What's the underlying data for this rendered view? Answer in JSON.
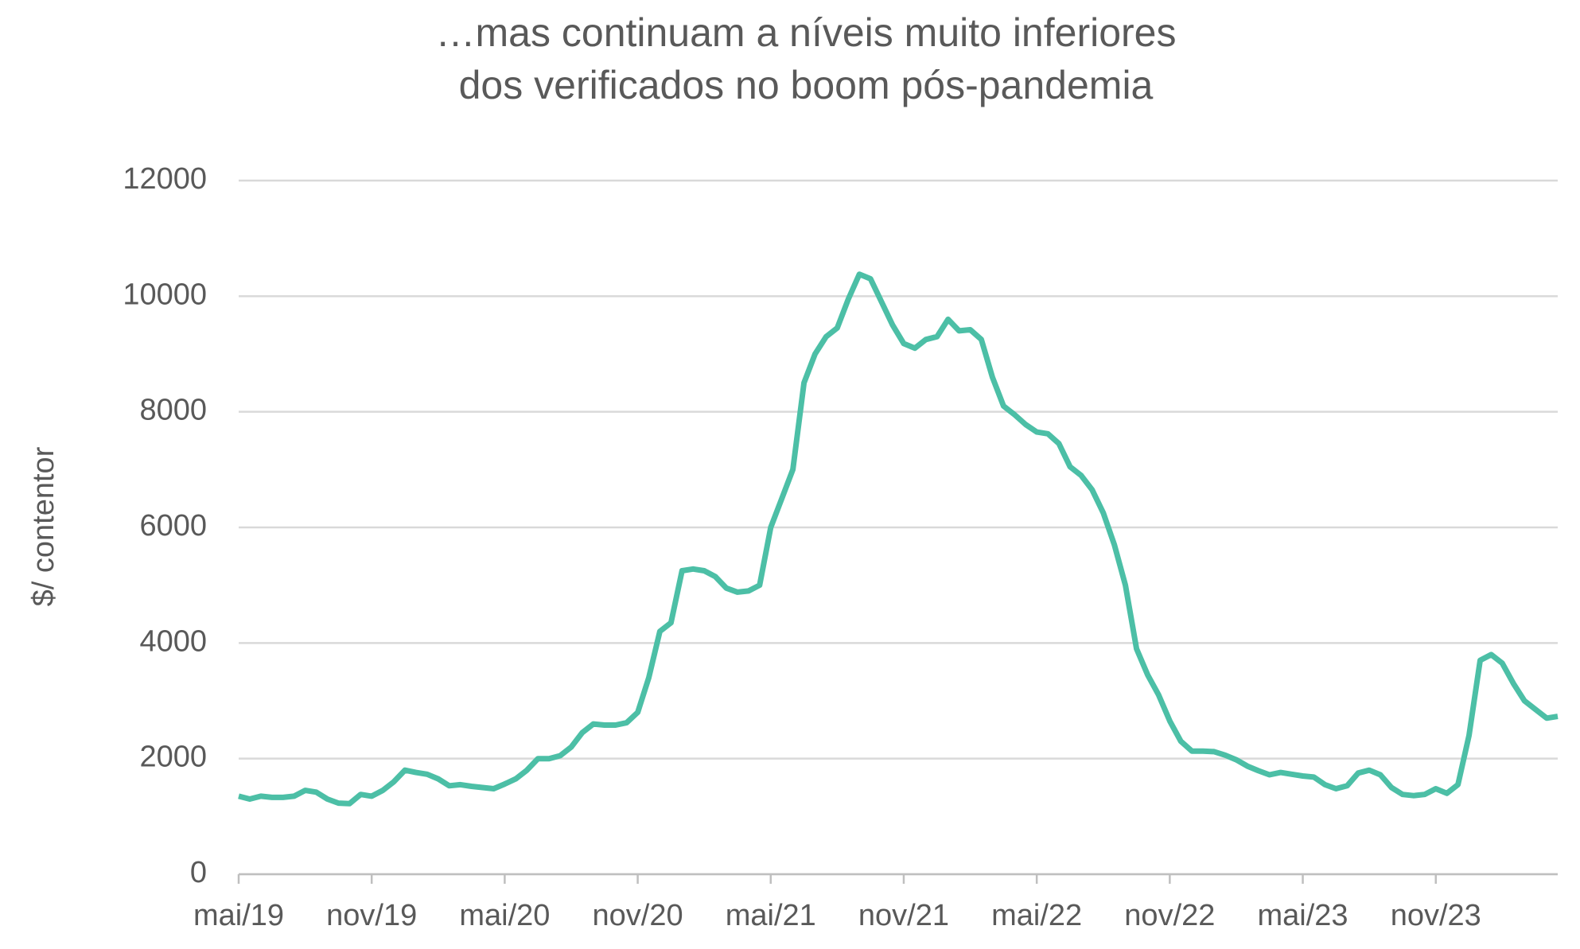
{
  "chart_data": {
    "type": "line",
    "title": [
      "…mas continuam a níveis muito inferiores",
      "dos verificados no boom pós-pandemia"
    ],
    "y_label": "$/ contentor",
    "categories": [
      "mai/19",
      null,
      null,
      null,
      null,
      null,
      null,
      null,
      null,
      null,
      null,
      null,
      "nov/19",
      null,
      null,
      null,
      null,
      null,
      null,
      null,
      null,
      null,
      null,
      null,
      "mai/20",
      null,
      null,
      null,
      null,
      null,
      null,
      null,
      null,
      null,
      null,
      null,
      "nov/20",
      null,
      null,
      null,
      null,
      null,
      null,
      null,
      null,
      null,
      null,
      null,
      "mai/21",
      null,
      null,
      null,
      null,
      null,
      null,
      null,
      null,
      null,
      null,
      null,
      "nov/21",
      null,
      null,
      null,
      null,
      null,
      null,
      null,
      null,
      null,
      null,
      null,
      "mai/22",
      null,
      null,
      null,
      null,
      null,
      null,
      null,
      null,
      null,
      null,
      null,
      "nov/22",
      null,
      null,
      null,
      null,
      null,
      null,
      null,
      null,
      null,
      null,
      null,
      "mai/23",
      null,
      null,
      null,
      null,
      null,
      null,
      null,
      null,
      null,
      null,
      null,
      "nov/23",
      null,
      null,
      null,
      null,
      null,
      null,
      null,
      null,
      null,
      null,
      null
    ],
    "series": [
      {
        "color": "#4cbfa6",
        "values": [
          1350,
          1300,
          1350,
          1330,
          1330,
          1350,
          1450,
          1420,
          1300,
          1230,
          1220,
          1380,
          1350,
          1450,
          1600,
          1800,
          1760,
          1730,
          1650,
          1530,
          1550,
          1520,
          1500,
          1480,
          1560,
          1650,
          1800,
          2000,
          2000,
          2050,
          2200,
          2450,
          2600,
          2580,
          2580,
          2620,
          2800,
          3400,
          4200,
          4350,
          5250,
          5280,
          5250,
          5150,
          4950,
          4880,
          4900,
          5000,
          6000,
          6500,
          7000,
          8500,
          9000,
          9300,
          9450,
          9950,
          10380,
          10300,
          9900,
          9500,
          9180,
          9100,
          9250,
          9300,
          9600,
          9400,
          9420,
          9250,
          8600,
          8100,
          7950,
          7780,
          7650,
          7620,
          7450,
          7050,
          6900,
          6650,
          6250,
          5700,
          5000,
          3900,
          3450,
          3100,
          2650,
          2300,
          2130,
          2130,
          2120,
          2060,
          1980,
          1870,
          1790,
          1720,
          1760,
          1730,
          1700,
          1680,
          1550,
          1480,
          1530,
          1750,
          1800,
          1720,
          1500,
          1380,
          1360,
          1380,
          1480,
          1400,
          1550,
          2400,
          3700,
          3800,
          3650,
          3300,
          3000,
          2850,
          2700,
          2730
        ]
      }
    ],
    "ylim": [
      0,
      12000
    ],
    "yticks": [
      0,
      2000,
      4000,
      6000,
      8000,
      10000,
      12000
    ],
    "grid": true
  }
}
